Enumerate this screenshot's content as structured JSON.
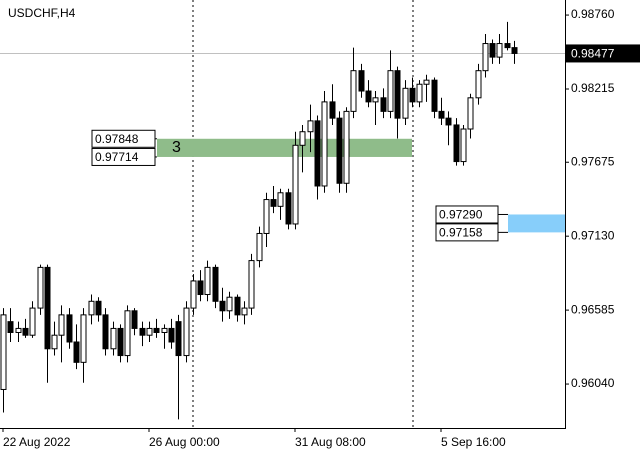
{
  "chart_data": {
    "type": "candlestick",
    "title": "USDCHF,H4",
    "up_color": "#ffffff",
    "down_color": "#000000",
    "categories": [
      "22 Aug 2022",
      null,
      null,
      null,
      null,
      null,
      null,
      null,
      null,
      null,
      null,
      null,
      null,
      null,
      null,
      null,
      null,
      null,
      null,
      null,
      "26 Aug 00:00",
      null,
      null,
      null,
      null,
      null,
      null,
      null,
      null,
      null,
      null,
      null,
      null,
      null,
      null,
      null,
      null,
      null,
      null,
      null,
      "31 Aug 08:00",
      null,
      null,
      null,
      null,
      null,
      null,
      null,
      null,
      null,
      null,
      null,
      null,
      null,
      null,
      null,
      null,
      null,
      null,
      null,
      "5 Sep 16:00",
      null,
      null,
      null,
      null,
      null,
      null,
      null,
      null,
      null,
      null
    ],
    "open": [
      0.96,
      0.965,
      0.9642,
      0.9645,
      0.964,
      0.966,
      0.969,
      0.963,
      0.964,
      0.9655,
      0.9635,
      0.962,
      0.9655,
      0.9665,
      0.9655,
      0.963,
      0.9645,
      0.9625,
      0.9658,
      0.9645,
      0.964,
      0.9645,
      0.9642,
      0.9645,
      0.965,
      0.9625,
      0.966,
      0.968,
      0.967,
      0.969,
      0.9665,
      0.9658,
      0.9668,
      0.9655,
      0.966,
      0.9695,
      0.9715,
      0.974,
      0.9735,
      0.9745,
      0.9722,
      0.978,
      0.979,
      0.9798,
      0.975,
      0.9812,
      0.98,
      0.9752,
      0.9805,
      0.9835,
      0.982,
      0.9812,
      0.9815,
      0.9805,
      0.9835,
      0.98,
      0.9822,
      0.9812,
      0.9825,
      0.9828,
      0.9805,
      0.98,
      0.9795,
      0.9768,
      0.9792,
      0.9815,
      0.9835,
      0.9855,
      0.9845,
      0.9855,
      0.9852
    ],
    "high": [
      0.966,
      0.966,
      0.965,
      0.9652,
      0.9665,
      0.9692,
      0.9692,
      0.965,
      0.9662,
      0.966,
      0.9648,
      0.966,
      0.967,
      0.9668,
      0.966,
      0.965,
      0.9648,
      0.9662,
      0.966,
      0.965,
      0.965,
      0.9652,
      0.9648,
      0.9652,
      0.9655,
      0.9665,
      0.9685,
      0.9688,
      0.9695,
      0.9692,
      0.9675,
      0.9672,
      0.967,
      0.9665,
      0.97,
      0.972,
      0.9745,
      0.975,
      0.9748,
      0.9748,
      0.979,
      0.9795,
      0.981,
      0.9802,
      0.982,
      0.9825,
      0.9805,
      0.9808,
      0.9852,
      0.984,
      0.9828,
      0.982,
      0.9822,
      0.985,
      0.9838,
      0.9828,
      0.983,
      0.9828,
      0.9832,
      0.983,
      0.9815,
      0.9805,
      0.98,
      0.9795,
      0.9818,
      0.984,
      0.9862,
      0.9858,
      0.9862,
      0.9871,
      0.9857
    ],
    "low": [
      0.9583,
      0.9635,
      0.9635,
      0.9638,
      0.9638,
      0.9655,
      0.9605,
      0.9625,
      0.962,
      0.963,
      0.9615,
      0.9605,
      0.9648,
      0.965,
      0.9625,
      0.9625,
      0.962,
      0.962,
      0.964,
      0.9632,
      0.9635,
      0.9638,
      0.963,
      0.963,
      0.9578,
      0.962,
      0.9655,
      0.9665,
      0.9665,
      0.966,
      0.965,
      0.9652,
      0.965,
      0.9648,
      0.9655,
      0.969,
      0.9705,
      0.973,
      0.9725,
      0.9718,
      0.9718,
      0.976,
      0.9775,
      0.974,
      0.9745,
      0.9795,
      0.9745,
      0.9745,
      0.98,
      0.9815,
      0.9808,
      0.9795,
      0.98,
      0.98,
      0.9785,
      0.9795,
      0.9808,
      0.9808,
      0.9812,
      0.98,
      0.9795,
      0.978,
      0.9765,
      0.9765,
      0.9785,
      0.981,
      0.983,
      0.984,
      0.984,
      0.985,
      0.984
    ],
    "close": [
      0.9655,
      0.9642,
      0.9645,
      0.964,
      0.966,
      0.969,
      0.963,
      0.964,
      0.9655,
      0.9635,
      0.962,
      0.9655,
      0.9665,
      0.9655,
      0.963,
      0.9645,
      0.9625,
      0.9658,
      0.9645,
      0.964,
      0.9645,
      0.9642,
      0.9645,
      0.9635,
      0.9625,
      0.966,
      0.968,
      0.967,
      0.969,
      0.9665,
      0.9658,
      0.9668,
      0.9655,
      0.966,
      0.9695,
      0.9715,
      0.974,
      0.9735,
      0.9745,
      0.9722,
      0.978,
      0.979,
      0.9798,
      0.975,
      0.9812,
      0.98,
      0.9752,
      0.9805,
      0.9835,
      0.982,
      0.9812,
      0.9815,
      0.9805,
      0.9835,
      0.98,
      0.9822,
      0.9812,
      0.9825,
      0.9828,
      0.9805,
      0.98,
      0.9795,
      0.9768,
      0.9792,
      0.9815,
      0.9835,
      0.9855,
      0.9845,
      0.9855,
      0.9852,
      0.98477
    ],
    "ylim": [
      0.95716,
      0.98871
    ],
    "yticks": [
      {
        "value": 0.9876,
        "label": "0.98760"
      },
      0.98215,
      0.97675,
      {
        "value": 0.9713,
        "label": "0.97130"
      },
      0.96585,
      {
        "value": 0.9604,
        "label": "0.96040"
      }
    ],
    "current_price": 0.98477,
    "zones": [
      {
        "label": "3",
        "top": 0.97848,
        "bottom": 0.97714,
        "color": "#8fbc8a"
      },
      {
        "top": 0.9729,
        "top_label": "0.97290",
        "bottom": 0.97158,
        "color": "#87cefa"
      }
    ]
  }
}
